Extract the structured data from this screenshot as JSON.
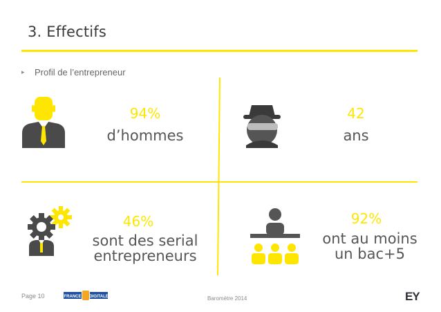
{
  "header": {
    "title": "3. Effectifs"
  },
  "section": {
    "bullet": "▸",
    "subtitle": "Profil de l’entrepreneur"
  },
  "stats": [
    {
      "value": "94%",
      "label": "d’hommes",
      "icon": "businessman-icon"
    },
    {
      "value": "42",
      "label": "ans",
      "icon": "spy-icon"
    },
    {
      "value": "46%",
      "label_lines": [
        "sont des serial",
        "entrepreneurs"
      ],
      "icon": "gears-person-icon"
    },
    {
      "value": "92%",
      "label_lines": [
        "ont au moins",
        "un bac+5"
      ],
      "icon": "classroom-icon"
    }
  ],
  "footer": {
    "page": "Page 10",
    "center": "Baromètre 2014",
    "partner_logo": "FRANCE DIGITALE",
    "brand_logo": "EY"
  },
  "colors": {
    "accent": "#ffe600",
    "text": "#555555",
    "icon_dark": "#4a4a4a"
  }
}
